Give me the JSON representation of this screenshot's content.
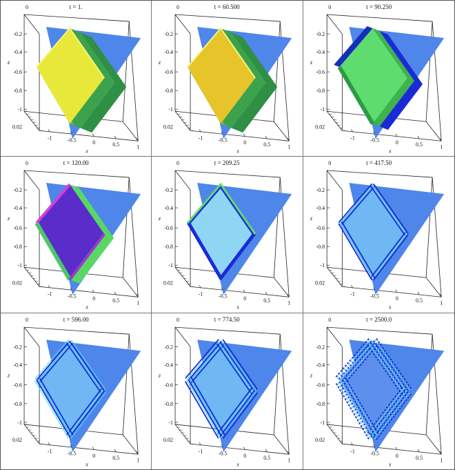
{
  "chart_data": {
    "type": "surface3d",
    "panels": [
      {
        "title": "t = 1.",
        "style": "yellow"
      },
      {
        "title": "t = 60.500",
        "style": "yellow-dark"
      },
      {
        "title": "t = 90.250",
        "style": "green"
      },
      {
        "title": "t = 120.00",
        "style": "purple"
      },
      {
        "title": "t = 209.25",
        "style": "light"
      },
      {
        "title": "t = 417.50",
        "style": "wave1"
      },
      {
        "title": "t = 596.00",
        "style": "wave2"
      },
      {
        "title": "t = 774.50",
        "style": "wave3"
      },
      {
        "title": "t = 2500.0",
        "style": "wave4"
      }
    ],
    "z_ticks": [
      "-0.2",
      "-0.4",
      "-0.6",
      "-0.8",
      "-1"
    ],
    "z_top_tick": "0",
    "x_ticks": [
      "-1",
      "-0.5",
      "0",
      "0.5",
      "1"
    ],
    "y_tick": "0.02",
    "xlabel": "x",
    "zlabel": "z",
    "colors": {
      "plane": "#4f86ea",
      "yellow": "#e8e83a",
      "green": "#5fdc6e",
      "dark_blue": "#1a2bd6",
      "purple": "#5a2cc9",
      "light": "#8fd6f5",
      "cyan": "#55d8ee"
    }
  }
}
